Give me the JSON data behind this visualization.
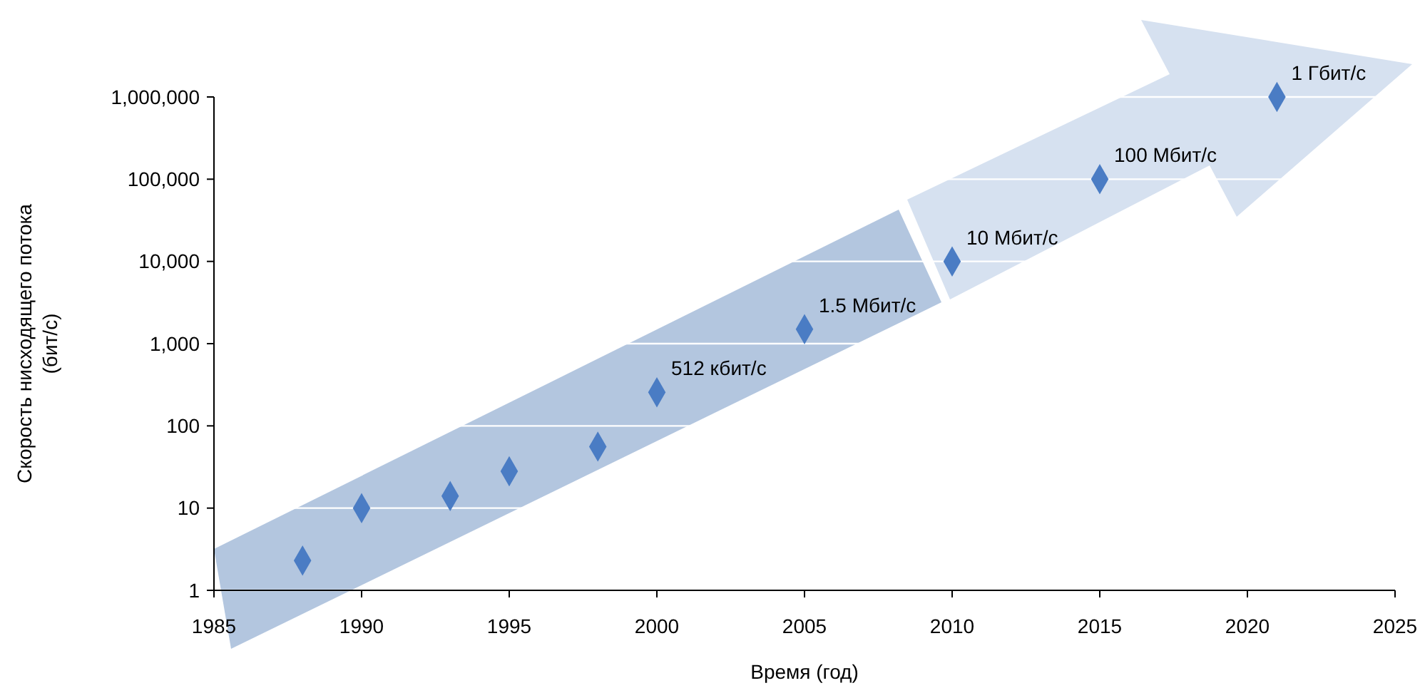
{
  "chart_data": {
    "type": "scatter",
    "xlabel": "Время (год)",
    "ylabel": "Скорость нисходящего потока (бит/с)",
    "x": [
      1988,
      1990,
      1993,
      1995,
      1998,
      2000,
      2005,
      2010,
      2015,
      2021
    ],
    "series": [
      {
        "color": "#4a7cc4",
        "values": [
          2.3,
          10,
          14,
          28,
          56,
          256,
          1500,
          10000,
          100000,
          1000000
        ]
      }
    ],
    "xlim": [
      1985,
      2025
    ],
    "xticks": [
      1985,
      1990,
      1995,
      2000,
      2005,
      2010,
      2015,
      2020,
      2025
    ],
    "ylim": [
      1,
      1000000
    ],
    "yticks": [
      1,
      10,
      100,
      {
        "value": 1000,
        "label": "1,000"
      },
      {
        "value": 10000,
        "label": "10,000"
      },
      {
        "value": 100000,
        "label": "100,000"
      },
      {
        "value": 1000000,
        "label": "1,000,000"
      }
    ],
    "log": "y",
    "marker": "diamond",
    "grid": "y",
    "annotations": [
      {
        "text": "512 кбит/с",
        "x": 2000,
        "y": 256
      },
      {
        "text": "1.5 Мбит/с",
        "x": 2005,
        "y": 1500
      },
      {
        "text": "10 Мбит/с",
        "x": 2010,
        "y": 10000
      },
      {
        "text": "100 Мбит/с",
        "x": 2015,
        "y": 100000
      },
      {
        "text": "1 Гбит/с",
        "x": 2021,
        "y": 1000000
      }
    ]
  }
}
